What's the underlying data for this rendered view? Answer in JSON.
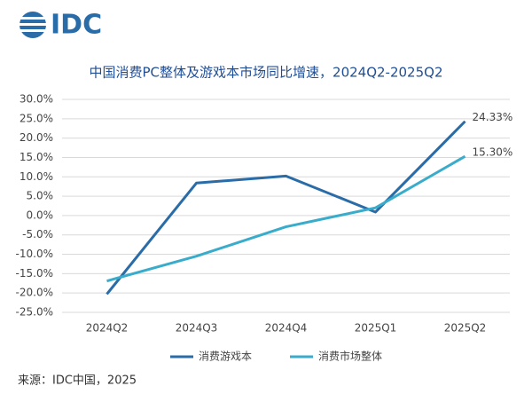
{
  "logo": "IDC",
  "source": "来源：IDC中国，2025",
  "chart_data": {
    "type": "line",
    "title": "中国消费PC整体及游戏本市场同比增速，2024Q2-2025Q2",
    "categories": [
      "2024Q2",
      "2024Q3",
      "2024Q4",
      "2025Q1",
      "2025Q2"
    ],
    "series": [
      {
        "name": "消费游戏本",
        "color": "#2a6ca8",
        "values": [
          -20.3,
          8.4,
          10.2,
          0.9,
          24.33
        ],
        "value_labels": [
          null,
          null,
          null,
          null,
          "24.33%"
        ]
      },
      {
        "name": "消费市场整体",
        "color": "#3aaccb",
        "values": [
          -16.9,
          -10.5,
          -2.9,
          2.0,
          15.3
        ],
        "value_labels": [
          null,
          null,
          null,
          null,
          "15.30%"
        ]
      }
    ],
    "ylim": [
      -25,
      30
    ],
    "yticks": [
      {
        "value": -25,
        "label": "-25.0%"
      },
      {
        "value": -20,
        "label": "-20.0%"
      },
      {
        "value": -15,
        "label": "-15.0%"
      },
      {
        "value": -10,
        "label": "-10.0%"
      },
      {
        "value": -5,
        "label": "-5.0%"
      },
      {
        "value": 0,
        "label": "0.0%"
      },
      {
        "value": 5,
        "label": "5.0%"
      },
      {
        "value": 10,
        "label": "10.0%"
      },
      {
        "value": 15,
        "label": "15.0%"
      },
      {
        "value": 20,
        "label": "20.0%"
      },
      {
        "value": 25,
        "label": "25.0%"
      },
      {
        "value": 30,
        "label": "30.0%"
      }
    ],
    "grid": true,
    "legend": "bottom"
  }
}
